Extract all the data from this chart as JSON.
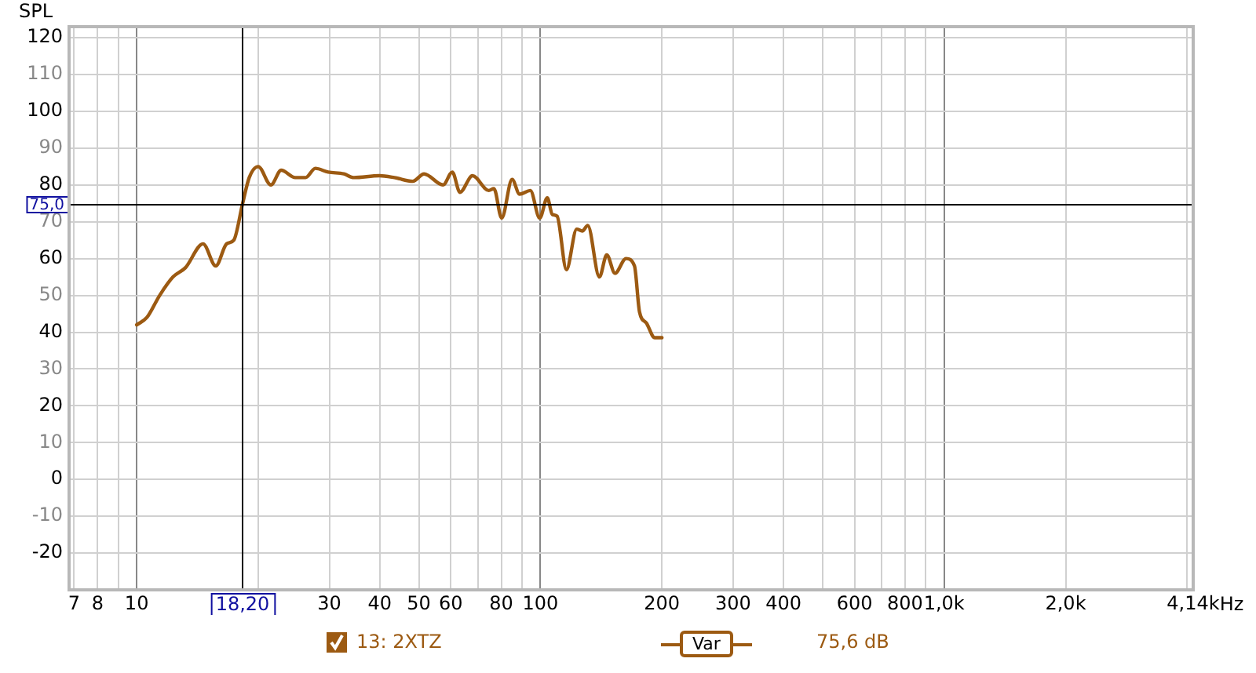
{
  "chart_data": {
    "type": "line",
    "ylabel": "SPL",
    "log": "x",
    "grid": true,
    "legend": "bottom",
    "marker": "none",
    "line_style": "solid",
    "xlim": [
      6.8,
      4140
    ],
    "ylim": [
      -30,
      123
    ],
    "xticks": [
      {
        "value": 7,
        "label": "7"
      },
      {
        "value": 8,
        "label": "8"
      },
      {
        "value": 9,
        "label": null
      },
      {
        "value": 10,
        "label": "10"
      },
      {
        "value": 20,
        "label": null
      },
      {
        "value": 30,
        "label": "30"
      },
      {
        "value": 40,
        "label": "40"
      },
      {
        "value": 50,
        "label": "50"
      },
      {
        "value": 60,
        "label": "60"
      },
      {
        "value": 70,
        "label": null
      },
      {
        "value": 80,
        "label": "80"
      },
      {
        "value": 90,
        "label": null
      },
      {
        "value": 100,
        "label": "100"
      },
      {
        "value": 200,
        "label": "200"
      },
      {
        "value": 300,
        "label": "300"
      },
      {
        "value": 400,
        "label": "400"
      },
      {
        "value": 500,
        "label": null
      },
      {
        "value": 600,
        "label": "600"
      },
      {
        "value": 700,
        "label": null
      },
      {
        "value": 800,
        "label": "800"
      },
      {
        "value": 900,
        "label": null
      },
      {
        "value": 1000,
        "label": "1,0k"
      },
      {
        "value": 2000,
        "label": "2,0k"
      },
      {
        "value": 4000,
        "label": null
      },
      {
        "value": 4140,
        "label": "4,14k"
      }
    ],
    "xlabel": "Hz",
    "yticks": [
      -20,
      -10,
      0,
      10,
      20,
      30,
      40,
      50,
      60,
      70,
      80,
      90,
      100,
      110,
      120
    ],
    "x": [
      10,
      10.6,
      11.4,
      12.3,
      13.2,
      14.6,
      15.7,
      16.7,
      17.4,
      18.3,
      19,
      20,
      21.5,
      22.8,
      24.7,
      26.2,
      27.7,
      29.8,
      32.6,
      34.5,
      39.9,
      43.5,
      48.3,
      51.5,
      57.4,
      60.5,
      63.2,
      67.9,
      74.5,
      76.7,
      80.2,
      85.1,
      88.8,
      94.4,
      99.6,
      104,
      107,
      110,
      116,
      123,
      127,
      131,
      140,
      146,
      153,
      163,
      171,
      176,
      183,
      192,
      200
    ],
    "series": [
      {
        "name": "13: 2XTZ",
        "color": "#9c5a12",
        "values": [
          42,
          44,
          50,
          55,
          57.5,
          64,
          58,
          64,
          65,
          75,
          82,
          85,
          80,
          84,
          82,
          82,
          84.5,
          83.5,
          83,
          82,
          82.5,
          82,
          81,
          83,
          80,
          83.5,
          78,
          82.5,
          78.5,
          79,
          71,
          81.5,
          77.5,
          78.5,
          71,
          76.5,
          72,
          71.5,
          57,
          68,
          67.5,
          69,
          55,
          61,
          56,
          60,
          58,
          45.5,
          42.5,
          38.5,
          38.5
        ]
      }
    ],
    "ref_lines": [
      {
        "axis": "x",
        "value": 18.2,
        "label": "18,20",
        "color": "#000000"
      },
      {
        "axis": "y",
        "value": 75,
        "label": "75,0",
        "color": "#000000"
      }
    ],
    "annotations": [
      "Var",
      "75,6 dB"
    ]
  }
}
